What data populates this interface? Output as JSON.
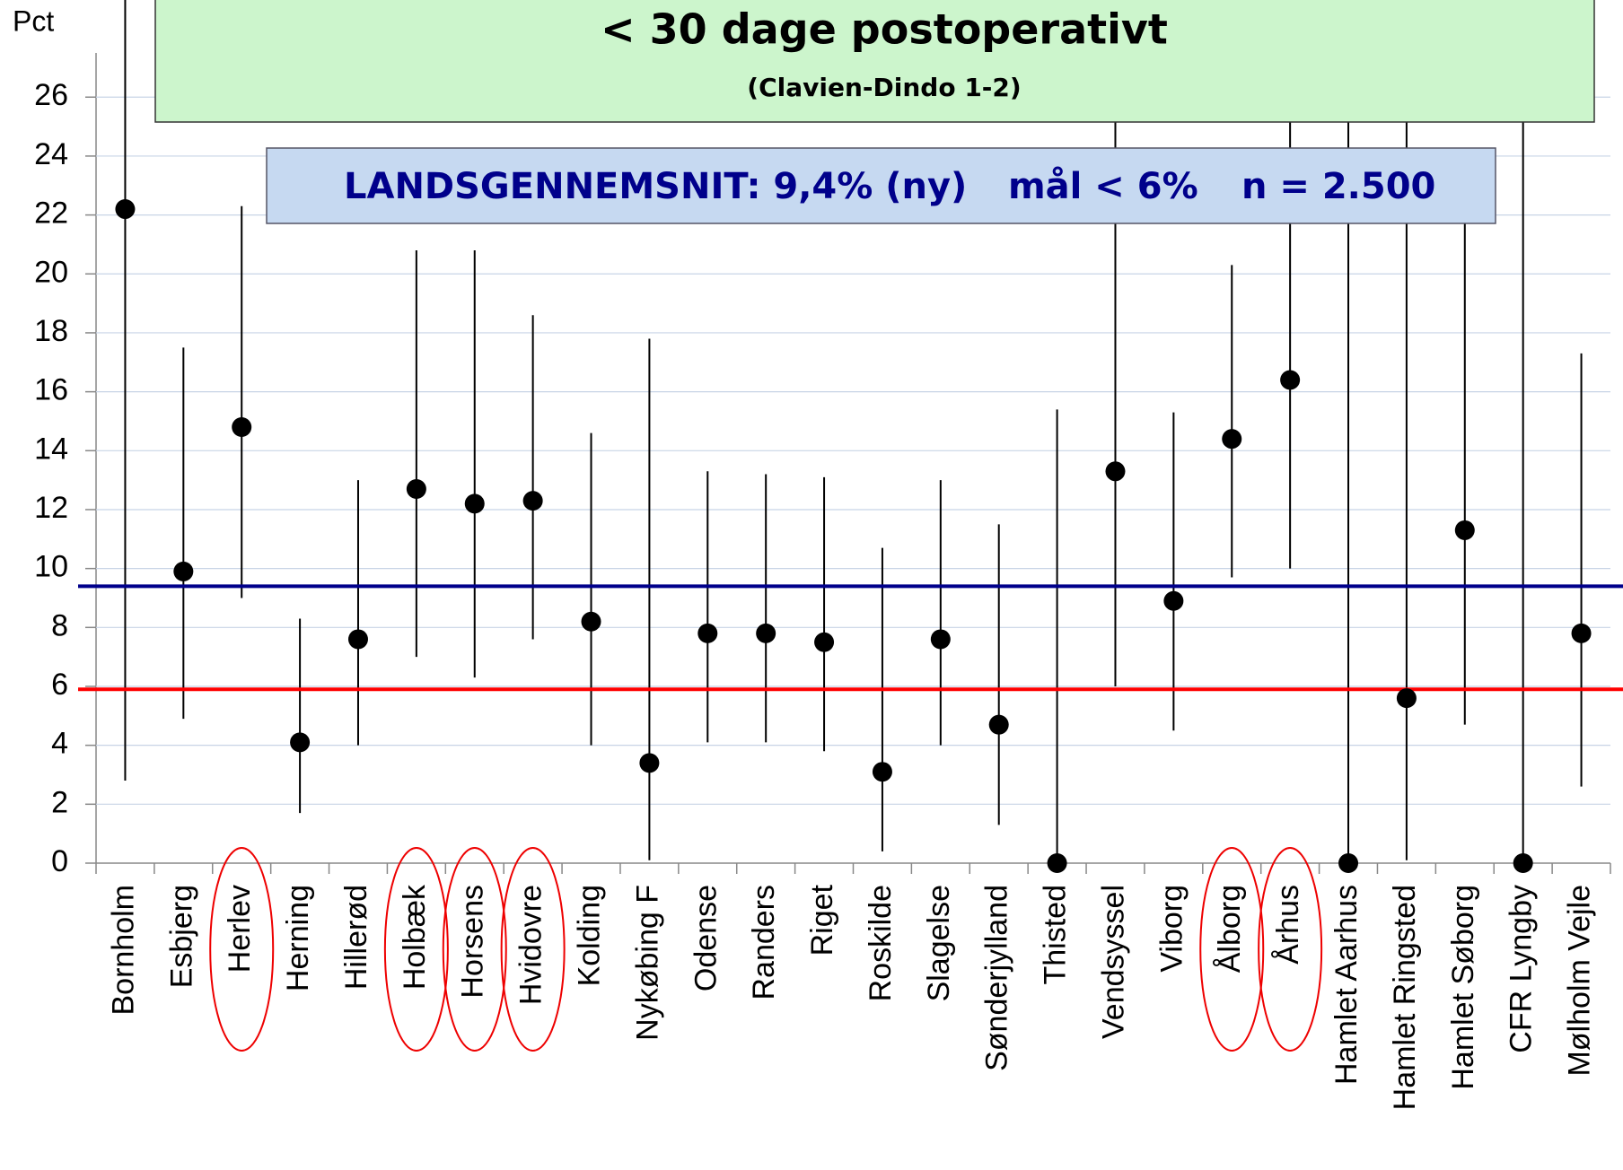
{
  "chart_data": {
    "type": "errorbar",
    "y_label": "Pct",
    "title": "< 30 dage postoperativt",
    "subtitle": "(Clavien-Dindo 1-2)",
    "banner": [
      "LANDSGENNEMSNIT: 9,4% (ny)",
      "mål < 6%",
      "n = 2.500"
    ],
    "categories": [
      "Bornholm",
      "Esbjerg",
      "Herlev",
      "Herning",
      "Hillerød",
      "Holbæk",
      "Horsens",
      "Hvidovre",
      "Kolding",
      "Nykøbing F",
      "Odense",
      "Randers",
      "Riget",
      "Roskilde",
      "Slagelse",
      "Sønderjylland",
      "Thisted",
      "Vendsyssel",
      "Viborg",
      "Ålborg",
      "Århus",
      "Hamlet Aarhus",
      "Hamlet Ringsted",
      "Hamlet Søborg",
      "CFR Lyngby",
      "Mølholm Vejle"
    ],
    "values": [
      22.2,
      9.9,
      14.8,
      4.1,
      7.6,
      12.7,
      12.2,
      12.3,
      8.2,
      3.4,
      7.8,
      7.8,
      7.5,
      3.1,
      7.6,
      4.7,
      0,
      13.3,
      8.9,
      14.4,
      16.4,
      0,
      5.6,
      11.3,
      0,
      7.8
    ],
    "ci_low": [
      2.8,
      4.9,
      9.0,
      1.7,
      4.0,
      7.0,
      6.3,
      7.6,
      4.0,
      0.1,
      4.1,
      4.1,
      3.8,
      0.4,
      4.0,
      1.3,
      0,
      6.0,
      4.5,
      9.7,
      10.0,
      0,
      0.1,
      4.7,
      0,
      2.6
    ],
    "ci_high": [
      30,
      17.5,
      22.3,
      8.3,
      13.0,
      20.8,
      20.8,
      18.6,
      14.6,
      17.8,
      13.3,
      13.2,
      13.1,
      10.7,
      13.0,
      11.5,
      15.4,
      30,
      15.3,
      20.3,
      30,
      30,
      30,
      22,
      30,
      17.3
    ],
    "color": "#000000",
    "reference_lines": [
      {
        "value": 9.4,
        "color": "#00008b"
      },
      {
        "value": 5.9,
        "color": "#ff0000"
      }
    ],
    "highlighted": [
      2,
      5,
      6,
      7,
      19,
      20
    ],
    "ylim": [
      0,
      27.5
    ],
    "yticks": [
      0,
      2,
      4,
      6,
      8,
      10,
      12,
      14,
      16,
      18,
      20,
      22,
      24,
      26
    ],
    "grid": true
  }
}
